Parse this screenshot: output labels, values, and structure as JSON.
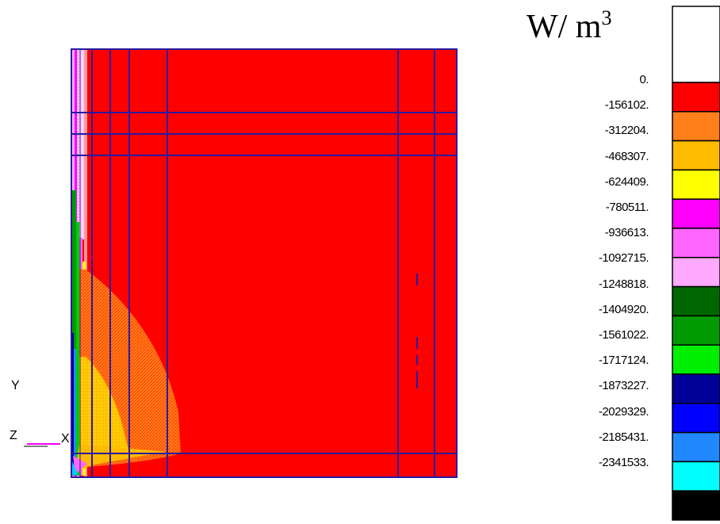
{
  "units": {
    "base": "W/ m",
    "exp": "3"
  },
  "axes": {
    "y": "Y",
    "z": "Z",
    "x": "X"
  },
  "legend": {
    "values": [
      "0.",
      "-156102.",
      "-312204.",
      "-468307.",
      "-624409.",
      "-780511.",
      "-936613.",
      "-1092715.",
      "-1248818.",
      "-1404920.",
      "-1561022.",
      "-1717124.",
      "-1873227.",
      "-2029329.",
      "-2185431.",
      "-2341533."
    ],
    "colors": [
      "#ffffff",
      "#ff0000",
      "#ff7f1a",
      "#ffbb00",
      "#ffff00",
      "#ff00ff",
      "#ff66ff",
      "#ffaaff",
      "#006600",
      "#009900",
      "#00ee00",
      "#000099",
      "#0000ff",
      "#2288ff",
      "#00ffff",
      "#000000"
    ]
  }
}
